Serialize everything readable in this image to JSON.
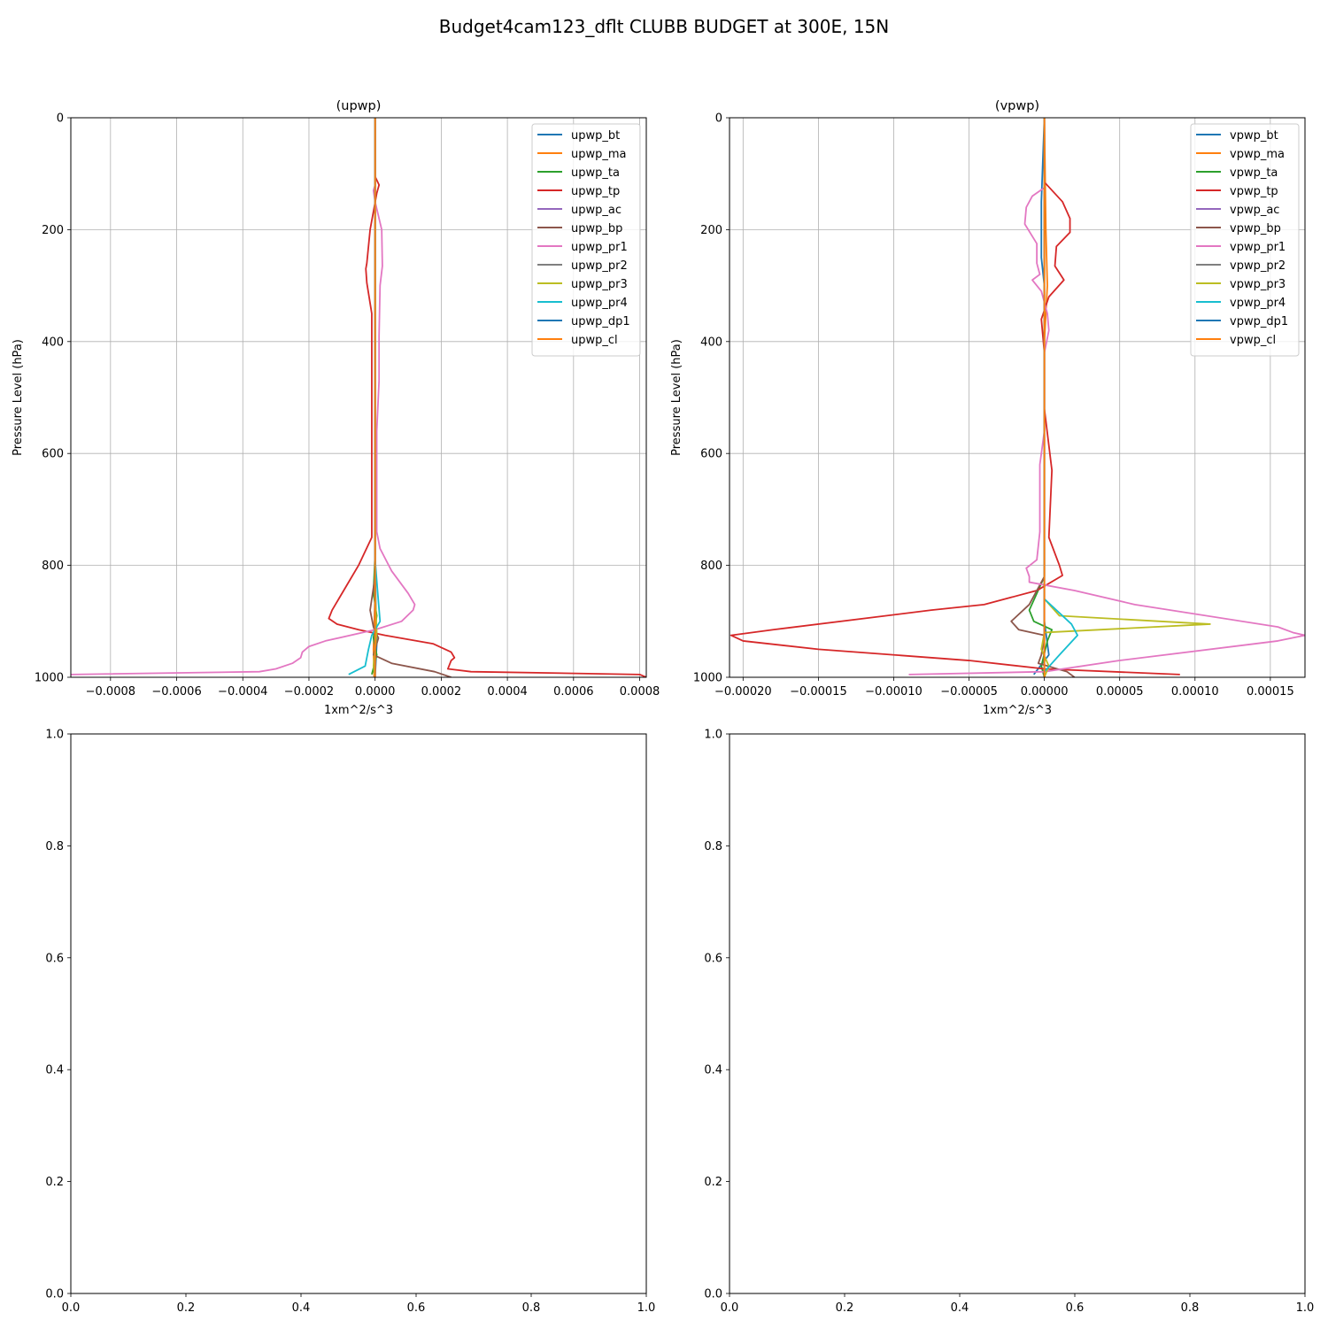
{
  "figure": {
    "title": "Budget4cam123_dflt CLUBB BUDGET at 300E, 15N"
  },
  "chart_data": [
    {
      "type": "line",
      "title": "(upwp)",
      "xlabel": "1xm^2/s^3",
      "ylabel": "Pressure Level (hPa)",
      "xlim": [
        -0.00092,
        0.00082
      ],
      "ylim": [
        1000,
        0
      ],
      "y_inverted": true,
      "grid": true,
      "legend": "top-right",
      "xticks": [
        "−0.0008",
        "−0.0006",
        "−0.0004",
        "−0.0002",
        "0.0000",
        "0.0002",
        "0.0004",
        "0.0006",
        "0.0008"
      ],
      "xtick_values": [
        -0.0008,
        -0.0006,
        -0.0004,
        -0.0002,
        0,
        0.0002,
        0.0004,
        0.0006,
        0.0008
      ],
      "yticks": [
        "0",
        "200",
        "400",
        "600",
        "800",
        "1000"
      ],
      "ytick_values": [
        0,
        200,
        400,
        600,
        800,
        1000
      ],
      "series": [
        {
          "name": "upwp_bt",
          "color": "#1f77b4",
          "points": [
            [
              0,
              0
            ],
            [
              0,
              800
            ],
            [
              3e-06,
              900
            ],
            [
              5e-06,
              940
            ],
            [
              0,
              1000
            ]
          ]
        },
        {
          "name": "upwp_ma",
          "color": "#ff7f0e",
          "points": [
            [
              0,
              0
            ],
            [
              0,
              850
            ],
            [
              -5e-06,
              950
            ],
            [
              -3e-06,
              1000
            ]
          ]
        },
        {
          "name": "upwp_ta",
          "color": "#2ca02c",
          "points": [
            [
              0,
              0
            ],
            [
              0,
              780
            ],
            [
              -5e-06,
              850
            ],
            [
              5e-06,
              890
            ],
            [
              -5e-06,
              930
            ],
            [
              5e-06,
              960
            ],
            [
              -1e-05,
              995
            ]
          ]
        },
        {
          "name": "upwp_tp",
          "color": "#d62728",
          "points": [
            [
              0,
              0
            ],
            [
              0,
              105
            ],
            [
              1.2e-05,
              120
            ],
            [
              5e-06,
              135
            ],
            [
              -1.5e-05,
              200
            ],
            [
              -2.5e-05,
              260
            ],
            [
              -2.8e-05,
              270
            ],
            [
              -2.5e-05,
              295
            ],
            [
              -1e-05,
              350
            ],
            [
              -1e-05,
              470
            ],
            [
              -1e-05,
              750
            ],
            [
              -5e-05,
              800
            ],
            [
              -9e-05,
              840
            ],
            [
              -0.00013,
              880
            ],
            [
              -0.00014,
              895
            ],
            [
              -0.000115,
              905
            ],
            [
              -5e-05,
              915
            ],
            [
              3e-05,
              925
            ],
            [
              0.000175,
              940
            ],
            [
              0.00023,
              955
            ],
            [
              0.00024,
              965
            ],
            [
              0.00023,
              970
            ],
            [
              0.00022,
              985
            ],
            [
              0.00029,
              990
            ],
            [
              0.0008,
              995
            ],
            [
              0.00082,
              1000
            ]
          ]
        },
        {
          "name": "upwp_ac",
          "color": "#9467bd",
          "points": [
            [
              0,
              0
            ],
            [
              0,
              1000
            ]
          ]
        },
        {
          "name": "upwp_bp",
          "color": "#8c564b",
          "points": [
            [
              0,
              0
            ],
            [
              0,
              820
            ],
            [
              -1.5e-05,
              880
            ],
            [
              -5e-06,
              910
            ],
            [
              1e-05,
              930
            ],
            [
              -5e-06,
              960
            ],
            [
              5e-05,
              975
            ],
            [
              0.00018,
              990
            ],
            [
              0.00023,
              1000
            ]
          ]
        },
        {
          "name": "upwp_pr1",
          "color": "#e377c2",
          "points": [
            [
              0,
              0
            ],
            [
              0,
              120
            ],
            [
              -5e-06,
              130
            ],
            [
              0,
              150
            ],
            [
              1e-05,
              175
            ],
            [
              2e-05,
              200
            ],
            [
              2.2e-05,
              265
            ],
            [
              1.5e-05,
              300
            ],
            [
              1.2e-05,
              390
            ],
            [
              1.2e-05,
              470
            ],
            [
              5e-06,
              560
            ],
            [
              5e-06,
              740
            ],
            [
              1.5e-05,
              770
            ],
            [
              5e-05,
              810
            ],
            [
              0.0001,
              850
            ],
            [
              0.00012,
              870
            ],
            [
              0.000115,
              880
            ],
            [
              8e-05,
              900
            ],
            [
              0,
              915
            ],
            [
              -0.00015,
              935
            ],
            [
              -0.0002,
              945
            ],
            [
              -0.00022,
              955
            ],
            [
              -0.000225,
              965
            ],
            [
              -0.00025,
              975
            ],
            [
              -0.0003,
              985
            ],
            [
              -0.00035,
              990
            ],
            [
              -0.00092,
              995
            ]
          ]
        },
        {
          "name": "upwp_pr2",
          "color": "#7f7f7f",
          "points": [
            [
              0,
              0
            ],
            [
              0,
              1000
            ]
          ]
        },
        {
          "name": "upwp_pr3",
          "color": "#bcbd22",
          "points": [
            [
              0,
              0
            ],
            [
              0,
              850
            ],
            [
              5e-06,
              920
            ],
            [
              -5e-06,
              980
            ],
            [
              0,
              1000
            ]
          ]
        },
        {
          "name": "upwp_pr4",
          "color": "#17becf",
          "points": [
            [
              0,
              0
            ],
            [
              0,
              790
            ],
            [
              8e-06,
              850
            ],
            [
              1.5e-05,
              900
            ],
            [
              -1e-05,
              925
            ],
            [
              -2e-05,
              950
            ],
            [
              -3e-05,
              980
            ],
            [
              -8e-05,
              995
            ]
          ]
        },
        {
          "name": "upwp_dp1",
          "color": "#1f77b4",
          "points": [
            [
              0,
              0
            ],
            [
              0,
              1000
            ]
          ]
        },
        {
          "name": "upwp_cl",
          "color": "#ff7f0e",
          "points": [
            [
              0,
              0
            ],
            [
              0,
              1000
            ]
          ]
        }
      ]
    },
    {
      "type": "line",
      "title": "(vpwp)",
      "xlabel": "1xm^2/s^3",
      "ylabel": "Pressure Level (hPa)",
      "xlim": [
        -0.000209,
        0.000173
      ],
      "ylim": [
        1000,
        0
      ],
      "y_inverted": true,
      "grid": true,
      "legend": "top-right",
      "xticks": [
        "−0.00020",
        "−0.00015",
        "−0.00010",
        "−0.00005",
        "0.00000",
        "0.00005",
        "0.00010",
        "0.00015"
      ],
      "xtick_values": [
        -0.0002,
        -0.00015,
        -0.0001,
        -5e-05,
        0,
        5e-05,
        0.0001,
        0.00015
      ],
      "yticks": [
        "0",
        "200",
        "400",
        "600",
        "800",
        "1000"
      ],
      "ytick_values": [
        0,
        200,
        400,
        600,
        800,
        1000
      ],
      "series": [
        {
          "name": "vpwp_bt",
          "color": "#1f77b4",
          "points": [
            [
              0,
              0
            ],
            [
              -2e-06,
              150
            ],
            [
              -2e-06,
              250
            ],
            [
              0,
              300
            ],
            [
              0,
              900
            ],
            [
              3e-06,
              960
            ],
            [
              -7e-06,
              995
            ]
          ]
        },
        {
          "name": "vpwp_ma",
          "color": "#ff7f0e",
          "points": [
            [
              0,
              0
            ],
            [
              1e-06,
              200
            ],
            [
              2e-06,
              300
            ],
            [
              0,
              400
            ],
            [
              0,
              1000
            ]
          ]
        },
        {
          "name": "vpwp_ta",
          "color": "#2ca02c",
          "points": [
            [
              0,
              0
            ],
            [
              0,
              820
            ],
            [
              -5e-06,
              850
            ],
            [
              -1e-05,
              880
            ],
            [
              -7e-06,
              900
            ],
            [
              5e-06,
              915
            ],
            [
              2e-06,
              935
            ],
            [
              -2e-06,
              980
            ],
            [
              0,
              1000
            ]
          ]
        },
        {
          "name": "vpwp_tp",
          "color": "#d62728",
          "points": [
            [
              0,
              0
            ],
            [
              0,
              115
            ],
            [
              1.2e-05,
              150
            ],
            [
              1.7e-05,
              180
            ],
            [
              1.7e-05,
              205
            ],
            [
              8e-06,
              230
            ],
            [
              7e-06,
              265
            ],
            [
              1.3e-05,
              290
            ],
            [
              3e-06,
              320
            ],
            [
              -2e-06,
              360
            ],
            [
              0,
              420
            ],
            [
              0,
              520
            ],
            [
              5e-06,
              630
            ],
            [
              3e-06,
              750
            ],
            [
              1e-05,
              800
            ],
            [
              1.2e-05,
              818
            ],
            [
              -5e-06,
              845
            ],
            [
              -4e-05,
              870
            ],
            [
              -7.5e-05,
              880
            ],
            [
              -0.00018,
              915
            ],
            [
              -0.000208,
              925
            ],
            [
              -0.0002,
              935
            ],
            [
              -0.00015,
              950
            ],
            [
              -5e-05,
              970
            ],
            [
              0,
              985
            ],
            [
              9e-05,
              995
            ]
          ]
        },
        {
          "name": "vpwp_ac",
          "color": "#9467bd",
          "points": [
            [
              0,
              0
            ],
            [
              0,
              1000
            ]
          ]
        },
        {
          "name": "vpwp_bp",
          "color": "#8c564b",
          "points": [
            [
              0,
              0
            ],
            [
              0,
              820
            ],
            [
              -1e-05,
              870
            ],
            [
              -2.2e-05,
              900
            ],
            [
              -1.7e-05,
              915
            ],
            [
              0,
              925
            ],
            [
              -2e-06,
              960
            ],
            [
              -4e-06,
              975
            ],
            [
              1.5e-05,
              990
            ],
            [
              2e-05,
              1000
            ]
          ]
        },
        {
          "name": "vpwp_pr1",
          "color": "#e377c2",
          "points": [
            [
              0,
              0
            ],
            [
              0,
              125
            ],
            [
              -8e-06,
              140
            ],
            [
              -1.2e-05,
              160
            ],
            [
              -1.3e-05,
              190
            ],
            [
              -5e-06,
              225
            ],
            [
              -5e-06,
              260
            ],
            [
              -3e-06,
              280
            ],
            [
              -8e-06,
              290
            ],
            [
              -2e-06,
              310
            ],
            [
              2e-06,
              350
            ],
            [
              3e-06,
              380
            ],
            [
              0,
              420
            ],
            [
              0,
              560
            ],
            [
              -3e-06,
              620
            ],
            [
              -3e-06,
              740
            ],
            [
              -5e-06,
              790
            ],
            [
              -1.2e-05,
              805
            ],
            [
              -1e-05,
              820
            ],
            [
              -1e-05,
              830
            ],
            [
              2e-05,
              845
            ],
            [
              6e-05,
              870
            ],
            [
              0.000155,
              910
            ],
            [
              0.000165,
              920
            ],
            [
              0.000173,
              925
            ],
            [
              0.000155,
              935
            ],
            [
              5e-05,
              970
            ],
            [
              0,
              990
            ],
            [
              -9e-05,
              995
            ]
          ]
        },
        {
          "name": "vpwp_pr2",
          "color": "#7f7f7f",
          "points": [
            [
              0,
              0
            ],
            [
              0,
              1000
            ]
          ]
        },
        {
          "name": "vpwp_pr3",
          "color": "#bcbd22",
          "points": [
            [
              0,
              0
            ],
            [
              0,
              860
            ],
            [
              1e-05,
              890
            ],
            [
              0.00011,
              905
            ],
            [
              0,
              920
            ],
            [
              -2e-06,
              950
            ],
            [
              3e-06,
              980
            ],
            [
              0,
              1000
            ]
          ]
        },
        {
          "name": "vpwp_pr4",
          "color": "#17becf",
          "points": [
            [
              0,
              0
            ],
            [
              0,
              860
            ],
            [
              8e-06,
              880
            ],
            [
              1.8e-05,
              905
            ],
            [
              2.2e-05,
              925
            ],
            [
              1e-05,
              960
            ],
            [
              0,
              990
            ]
          ]
        },
        {
          "name": "vpwp_dp1",
          "color": "#1f77b4",
          "points": [
            [
              0,
              0
            ],
            [
              0,
              1000
            ]
          ]
        },
        {
          "name": "vpwp_cl",
          "color": "#ff7f0e",
          "points": [
            [
              0,
              0
            ],
            [
              0,
              1000
            ]
          ]
        }
      ]
    },
    {
      "type": "line",
      "title": "",
      "xlim": [
        0,
        1
      ],
      "ylim": [
        0,
        1
      ],
      "xticks": [
        "0.0",
        "0.2",
        "0.4",
        "0.6",
        "0.8",
        "1.0"
      ],
      "xtick_values": [
        0,
        0.2,
        0.4,
        0.6,
        0.8,
        1.0
      ],
      "yticks": [
        "0.0",
        "0.2",
        "0.4",
        "0.6",
        "0.8",
        "1.0"
      ],
      "ytick_values": [
        0,
        0.2,
        0.4,
        0.6,
        0.8,
        1.0
      ],
      "grid": false,
      "series": []
    },
    {
      "type": "line",
      "title": "",
      "xlim": [
        0,
        1
      ],
      "ylim": [
        0,
        1
      ],
      "xticks": [
        "0.0",
        "0.2",
        "0.4",
        "0.6",
        "0.8",
        "1.0"
      ],
      "xtick_values": [
        0,
        0.2,
        0.4,
        0.6,
        0.8,
        1.0
      ],
      "yticks": [
        "0.0",
        "0.2",
        "0.4",
        "0.6",
        "0.8",
        "1.0"
      ],
      "ytick_values": [
        0,
        0.2,
        0.4,
        0.6,
        0.8,
        1.0
      ],
      "grid": false,
      "series": []
    }
  ]
}
